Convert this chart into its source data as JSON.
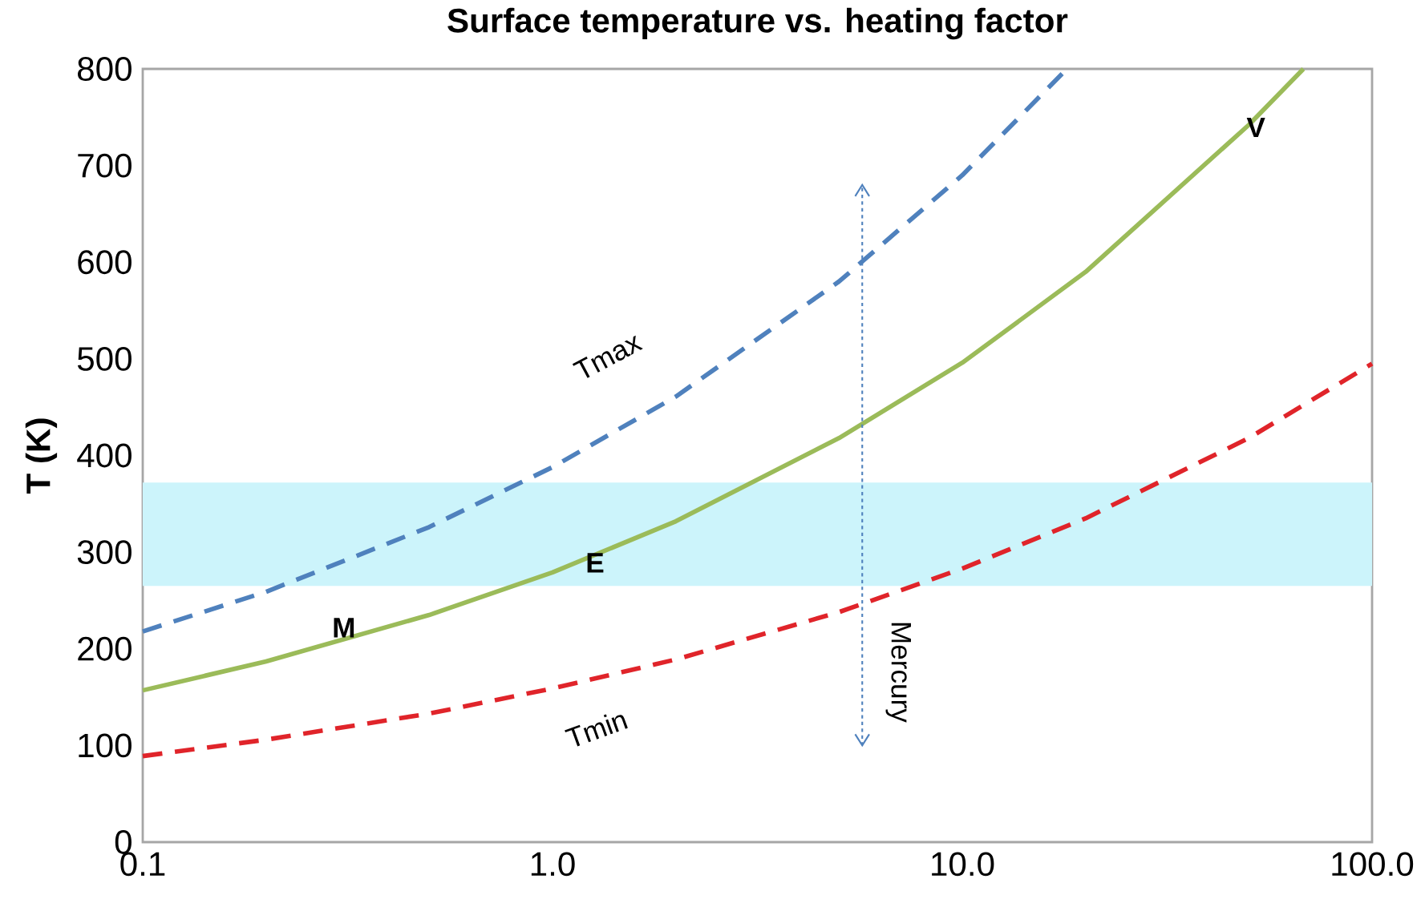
{
  "chart_data": {
    "type": "line",
    "title": "Surface temperature vs. heating factor",
    "ylabel": "T (K)",
    "log": "x",
    "grid": false,
    "marker": "none",
    "xlim": [
      0.1,
      100
    ],
    "ylim": [
      0,
      800
    ],
    "xticks": [
      {
        "value": 0.1,
        "label": "0.1"
      },
      {
        "value": 1,
        "label": "1.0"
      },
      {
        "value": 10,
        "label": "10.0"
      },
      {
        "value": 100,
        "label": "100.0"
      }
    ],
    "yticks": [
      0,
      100,
      200,
      300,
      400,
      500,
      600,
      700,
      800
    ],
    "bands": [
      {
        "axis": "y",
        "from": 265,
        "to": 372,
        "color": "#ccf4fb"
      }
    ],
    "series": [
      {
        "name": "Tmax",
        "color": "#4f81bd",
        "line_style": "dashed",
        "x": [
          0.1,
          0.2,
          0.5,
          1,
          2,
          5,
          10,
          18
        ],
        "values": [
          218,
          259,
          326,
          388,
          461,
          580,
          690,
          800
        ]
      },
      {
        "color": "#9bbb59",
        "line_style": "solid",
        "x": [
          0.1,
          0.2,
          0.5,
          1,
          2,
          5,
          10,
          20,
          50,
          68
        ],
        "values": [
          157,
          187,
          235,
          279,
          332,
          418,
          496,
          590,
          742,
          800
        ]
      },
      {
        "name": "Tmin",
        "color": "#e0242a",
        "line_style": "dashed",
        "x": [
          0.1,
          0.2,
          0.5,
          1,
          2,
          5,
          10,
          20,
          50,
          100
        ],
        "values": [
          89,
          106,
          133,
          159,
          189,
          238,
          283,
          335,
          418,
          495
        ]
      },
      {
        "name": "Mercury",
        "color": "#4f81bd",
        "line_style": "dotted",
        "x": [
          5.7,
          5.7
        ],
        "values": [
          100,
          680
        ]
      }
    ],
    "annotations": [
      "M",
      "E",
      "V"
    ]
  }
}
